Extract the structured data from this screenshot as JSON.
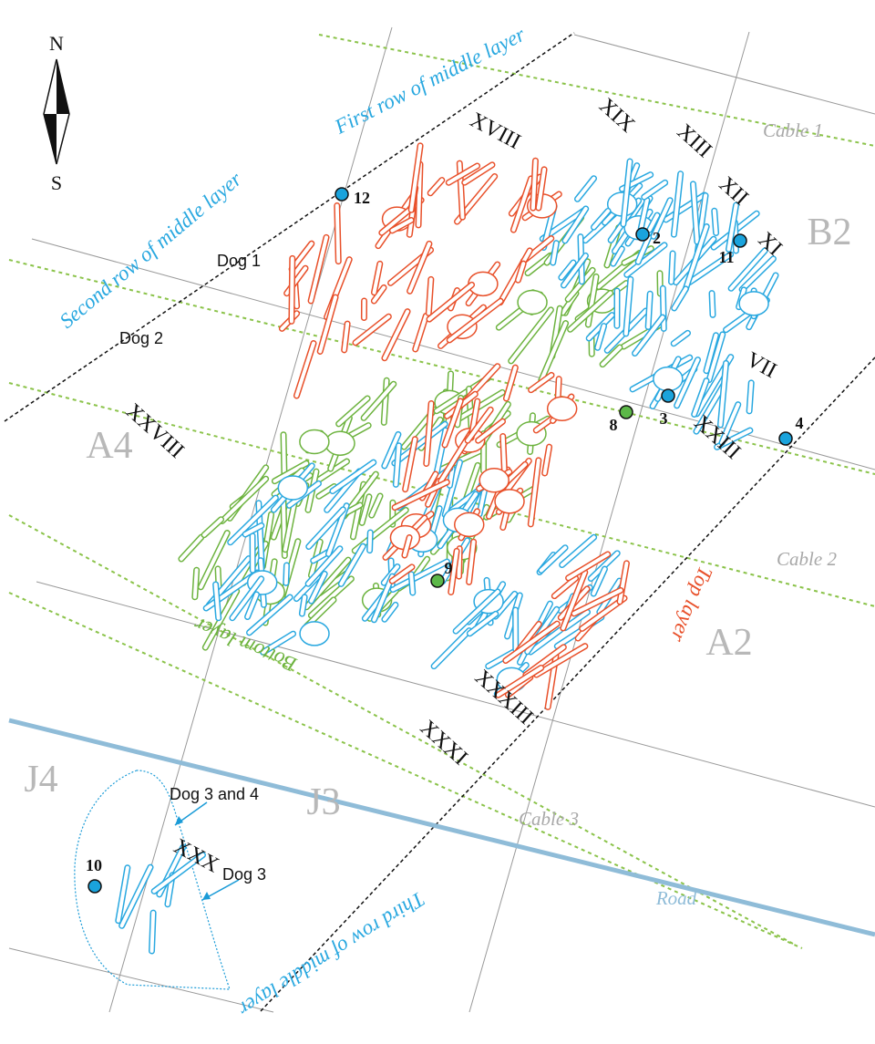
{
  "compass": {
    "north": "N",
    "south": "S"
  },
  "layer_labels": {
    "first_row": "First row of middle layer",
    "second_row": "Second row of middle layer",
    "third_row": "Third row of middle layer",
    "top": "Top layer",
    "bottom": "Bottom layer"
  },
  "burials": [
    "XVIII",
    "XIX",
    "XIII",
    "XII",
    "XI",
    "VII",
    "XXIII",
    "XXVIII",
    "XXXIII",
    "XXXI",
    "XXX"
  ],
  "squares": [
    "B2",
    "A4",
    "A2",
    "J4",
    "J3"
  ],
  "cables": [
    "Cable 1",
    "Cable 2",
    "Cable 3"
  ],
  "road": "Road",
  "dogs": [
    "Dog 1",
    "Dog 2",
    "Dog 3 and 4",
    "Dog 3"
  ],
  "samples": [
    {
      "label": "12",
      "color": "#1aa3dc"
    },
    {
      "label": "2",
      "color": "#1aa3dc"
    },
    {
      "label": "11",
      "color": "#1aa3dc"
    },
    {
      "label": "3",
      "color": "#1aa3dc"
    },
    {
      "label": "8",
      "color": "#5cb848"
    },
    {
      "label": "4",
      "color": "#1aa3dc"
    },
    {
      "label": "9",
      "color": "#5cb848"
    },
    {
      "label": "10",
      "color": "#1aa3dc"
    }
  ]
}
